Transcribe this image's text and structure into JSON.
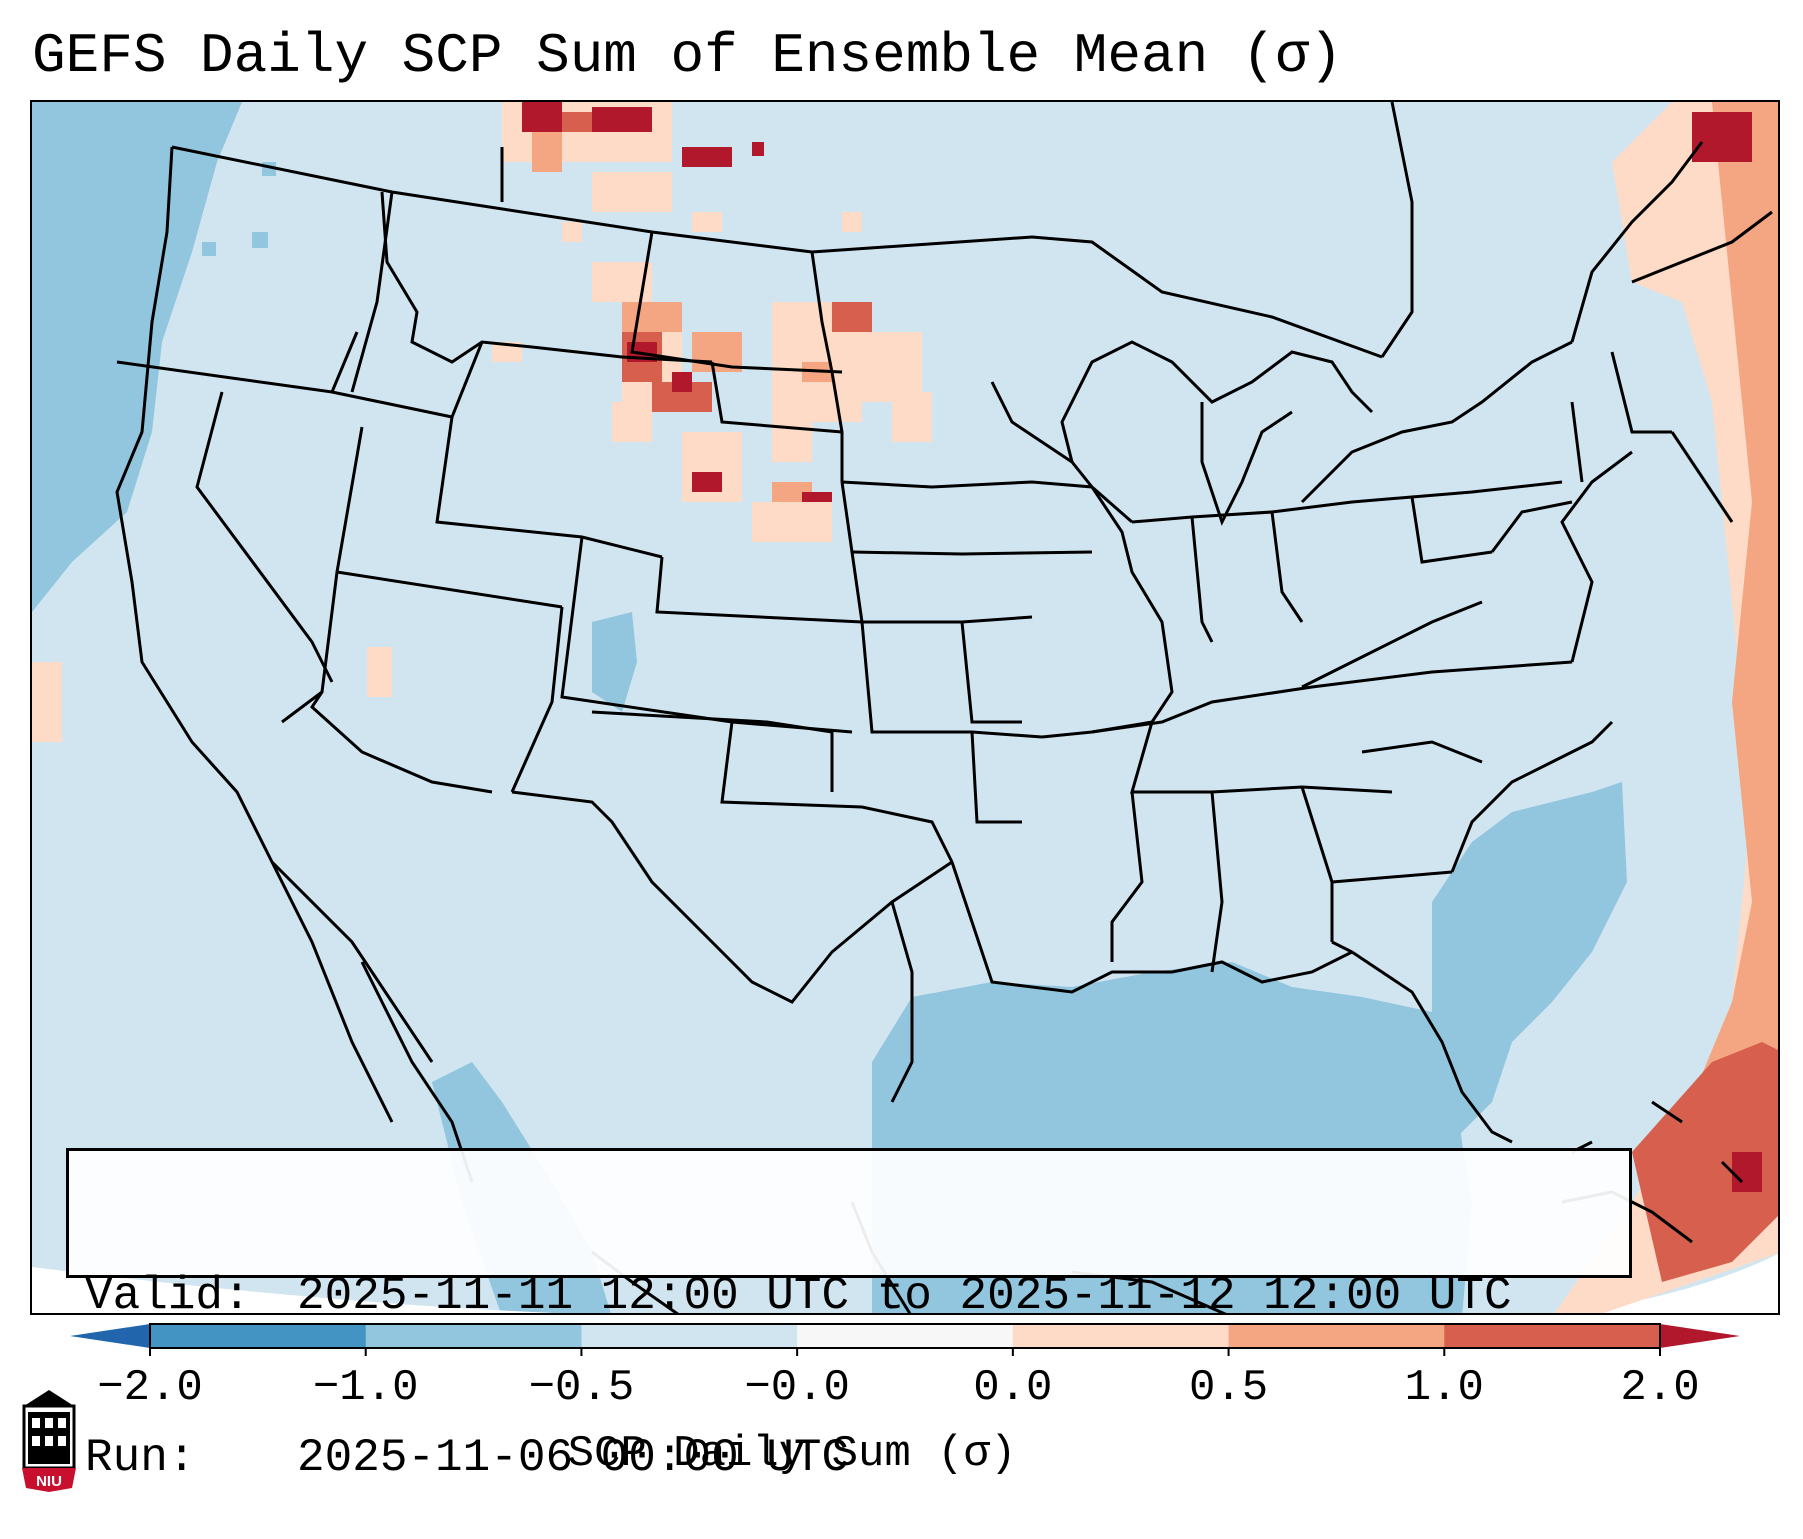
{
  "title": "GEFS Daily SCP Sum of Ensemble Mean (σ)",
  "info": {
    "valid_label": "Valid:",
    "valid_value": "2025-11-11 12:00 UTC to 2025-11-12 12:00 UTC",
    "run_label": "Run:",
    "run_value": "2025-11-06 00:00 UTC"
  },
  "colorbar": {
    "title": "SCP Daily Sum (σ)",
    "ticks": [
      "−2.0",
      "−1.0",
      "−0.5",
      "−0.0",
      "0.0",
      "0.5",
      "1.0",
      "2.0"
    ],
    "colors": [
      "#4393c3",
      "#92c5de",
      "#d1e5f0",
      "#f7f7f7",
      "#fddbc7",
      "#f4a582",
      "#d6604d"
    ],
    "extend_low_color": "#2166ac",
    "extend_high_color": "#b2182b"
  },
  "logo": {
    "icon": "niu-logo-icon",
    "text": "NIU"
  }
}
